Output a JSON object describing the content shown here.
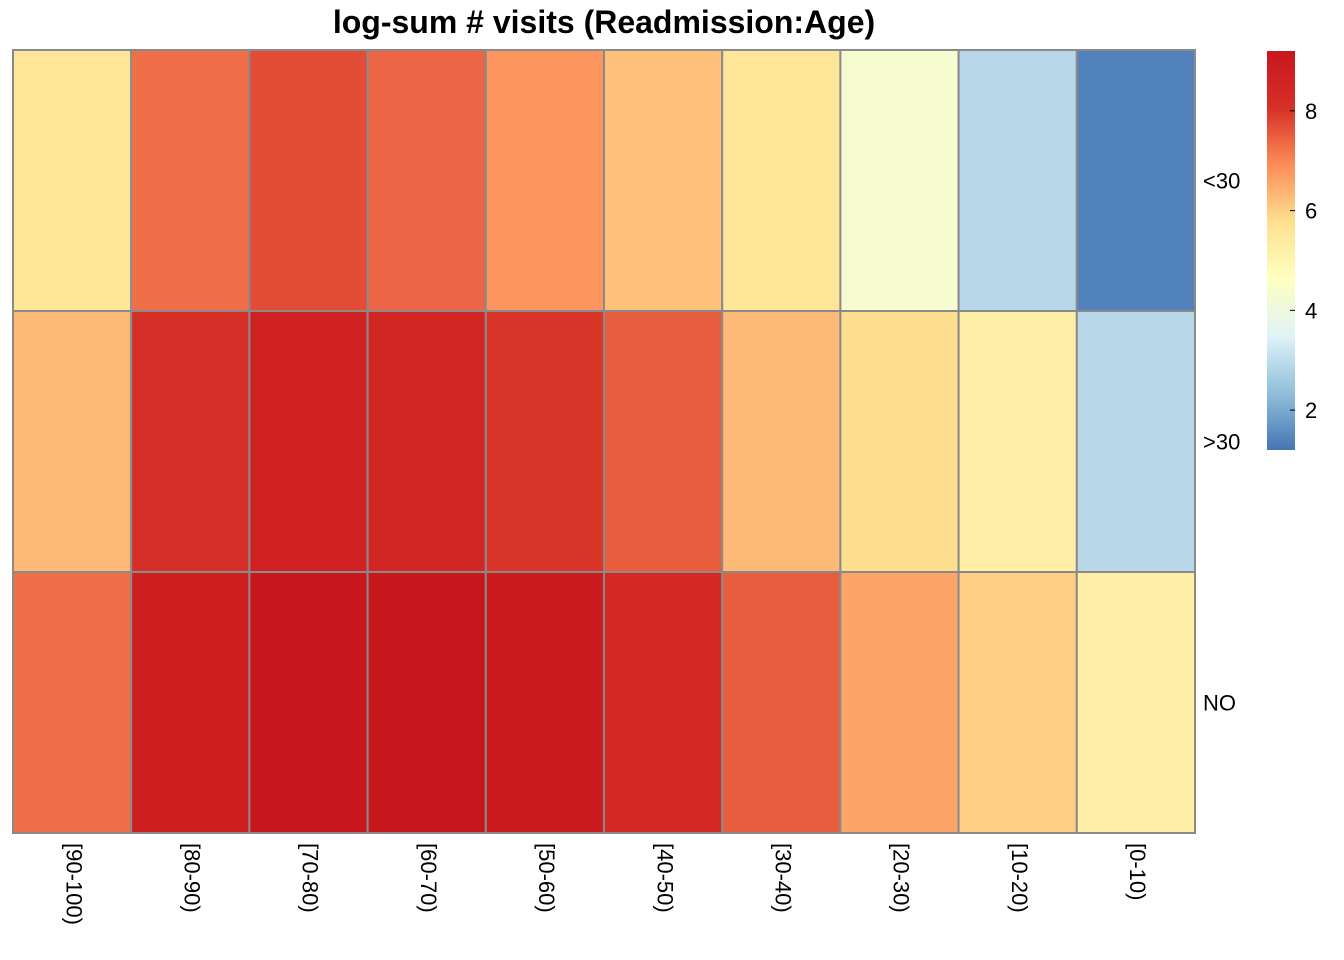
{
  "chart_data": {
    "type": "heatmap",
    "title": "log-sum # visits (Readmission:Age)",
    "rows": [
      "<30",
      ">30",
      "NO"
    ],
    "columns": [
      "[90-100)",
      "[80-90)",
      "[70-80)",
      "[60-70)",
      "[50-60)",
      "[40-50)",
      "[30-40)",
      "[20-30)",
      "[10-20)",
      "[0-10)"
    ],
    "values": [
      [
        5.6,
        7.3,
        7.7,
        7.4,
        6.8,
        6.2,
        5.6,
        4.3,
        2.9,
        1.4
      ],
      [
        6.3,
        8.1,
        8.7,
        8.5,
        8.0,
        7.5,
        6.3,
        5.8,
        5.2,
        2.9
      ],
      [
        7.3,
        8.8,
        9.2,
        9.2,
        9.0,
        8.4,
        7.5,
        6.6,
        6.0,
        5.2
      ]
    ],
    "legend": {
      "range": [
        1.2,
        9.2
      ],
      "ticks": [
        2,
        4,
        6,
        8
      ],
      "placement": "right"
    },
    "colors": [
      "#4575b4",
      "#91bfdb",
      "#e0f3f8",
      "#ffffbf",
      "#fee090",
      "#fc8d59",
      "#d73027",
      "#c8161d"
    ]
  }
}
